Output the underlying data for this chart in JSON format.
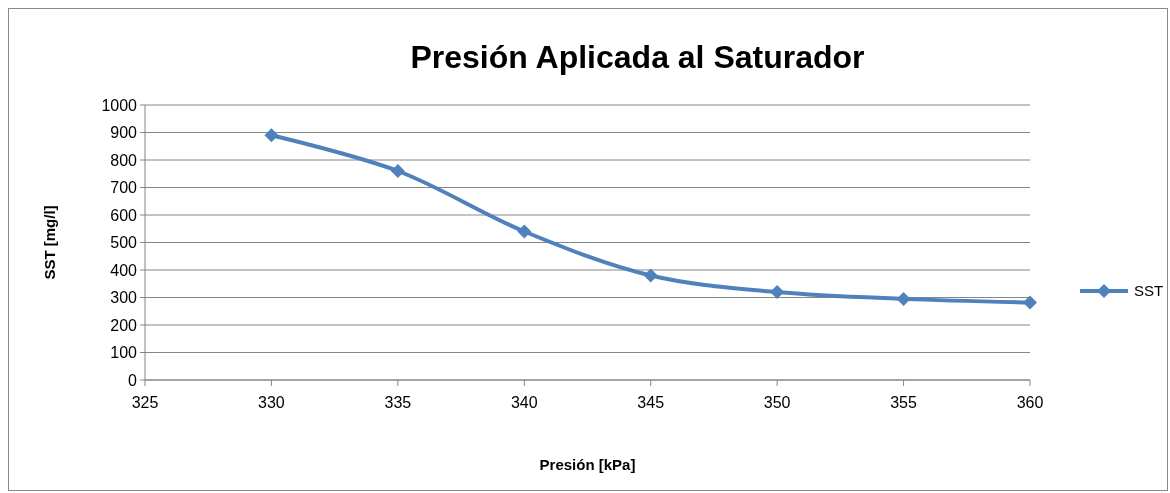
{
  "chart_data": {
    "type": "line",
    "title": "Presión Aplicada al Saturador",
    "xlabel": "Presión [kPa]",
    "ylabel": "SST [mg/l]",
    "x": [
      330,
      335,
      340,
      345,
      350,
      355,
      360
    ],
    "series": [
      {
        "name": "SST",
        "color": "#4f81bd",
        "values": [
          890,
          760,
          540,
          380,
          320,
          295,
          282
        ]
      }
    ],
    "xlim": [
      325,
      360
    ],
    "xticks": [
      325,
      330,
      335,
      340,
      345,
      350,
      355,
      360
    ],
    "ylim": [
      0,
      1000
    ],
    "yticks": [
      0,
      100,
      200,
      300,
      400,
      500,
      600,
      700,
      800,
      900,
      1000
    ],
    "grid": "y",
    "legend": "right",
    "marker": "diamond",
    "line_style": "solid"
  }
}
